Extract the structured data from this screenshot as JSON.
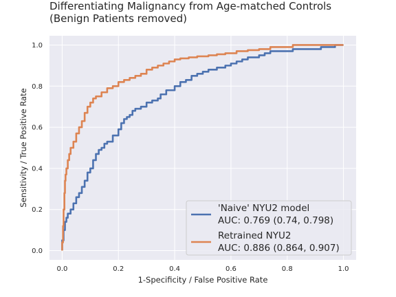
{
  "chart_data": {
    "type": "line",
    "title_lines": [
      "Differentiating Malignancy from Age-matched Controls",
      "(Benign Patients removed)"
    ],
    "xlabel": "1-Specificity / False Positive Rate",
    "ylabel": "Sensitivity / True Positive Rate",
    "xlim": [
      -0.045,
      1.045
    ],
    "ylim": [
      -0.045,
      1.045
    ],
    "xticks": [
      0.0,
      0.2,
      0.4,
      0.6,
      0.8,
      1.0
    ],
    "yticks": [
      0.0,
      0.2,
      0.4,
      0.6,
      0.8,
      1.0
    ],
    "xtick_labels": [
      "0.0",
      "0.2",
      "0.4",
      "0.6",
      "0.8",
      "1.0"
    ],
    "ytick_labels": [
      "0.0",
      "0.2",
      "0.4",
      "0.6",
      "0.8",
      "1.0"
    ],
    "grid": true,
    "legend_placement": "lower-right",
    "series": [
      {
        "name": "'Naive' NYU2 model",
        "auc_label": "AUC: 0.769 (0.74, 0.798)",
        "color": "#4c72b0",
        "x": [
          0.0,
          0.0,
          0.005,
          0.01,
          0.015,
          0.02,
          0.03,
          0.04,
          0.05,
          0.06,
          0.07,
          0.08,
          0.09,
          0.1,
          0.11,
          0.12,
          0.13,
          0.14,
          0.15,
          0.16,
          0.18,
          0.2,
          0.21,
          0.22,
          0.23,
          0.24,
          0.25,
          0.26,
          0.28,
          0.3,
          0.32,
          0.34,
          0.35,
          0.37,
          0.4,
          0.42,
          0.44,
          0.46,
          0.48,
          0.5,
          0.52,
          0.55,
          0.58,
          0.6,
          0.62,
          0.64,
          0.66,
          0.7,
          0.72,
          0.74,
          0.76,
          0.8,
          0.82,
          0.84,
          0.86,
          0.88,
          0.9,
          0.92,
          0.95,
          0.97,
          1.0
        ],
        "y": [
          0.0,
          0.05,
          0.1,
          0.14,
          0.16,
          0.18,
          0.2,
          0.23,
          0.26,
          0.28,
          0.31,
          0.34,
          0.38,
          0.4,
          0.44,
          0.47,
          0.49,
          0.5,
          0.52,
          0.53,
          0.56,
          0.59,
          0.62,
          0.64,
          0.65,
          0.66,
          0.68,
          0.69,
          0.7,
          0.72,
          0.73,
          0.74,
          0.76,
          0.78,
          0.8,
          0.82,
          0.83,
          0.85,
          0.86,
          0.87,
          0.88,
          0.89,
          0.9,
          0.91,
          0.92,
          0.93,
          0.94,
          0.95,
          0.96,
          0.97,
          0.97,
          0.97,
          0.98,
          0.98,
          0.98,
          0.98,
          0.98,
          0.99,
          0.99,
          1.0,
          1.0
        ]
      },
      {
        "name": "Retrained NYU2",
        "auc_label": "AUC: 0.886 (0.864, 0.907)",
        "color": "#dd8452",
        "x": [
          0.0,
          0.0,
          0.003,
          0.005,
          0.008,
          0.01,
          0.012,
          0.015,
          0.02,
          0.025,
          0.03,
          0.04,
          0.05,
          0.06,
          0.07,
          0.08,
          0.09,
          0.1,
          0.11,
          0.12,
          0.14,
          0.16,
          0.18,
          0.2,
          0.22,
          0.24,
          0.26,
          0.28,
          0.3,
          0.32,
          0.34,
          0.36,
          0.38,
          0.4,
          0.42,
          0.45,
          0.48,
          0.52,
          0.55,
          0.58,
          0.62,
          0.66,
          0.7,
          0.74,
          0.78,
          0.82,
          0.86,
          0.9,
          0.95,
          1.0
        ],
        "y": [
          0.0,
          0.04,
          0.12,
          0.2,
          0.28,
          0.34,
          0.37,
          0.4,
          0.44,
          0.47,
          0.5,
          0.53,
          0.57,
          0.6,
          0.63,
          0.67,
          0.7,
          0.72,
          0.74,
          0.75,
          0.77,
          0.79,
          0.8,
          0.82,
          0.83,
          0.84,
          0.85,
          0.86,
          0.88,
          0.89,
          0.9,
          0.91,
          0.92,
          0.93,
          0.935,
          0.94,
          0.945,
          0.95,
          0.955,
          0.96,
          0.97,
          0.975,
          0.98,
          0.99,
          0.99,
          1.0,
          1.0,
          1.0,
          1.0,
          1.0
        ]
      }
    ]
  }
}
